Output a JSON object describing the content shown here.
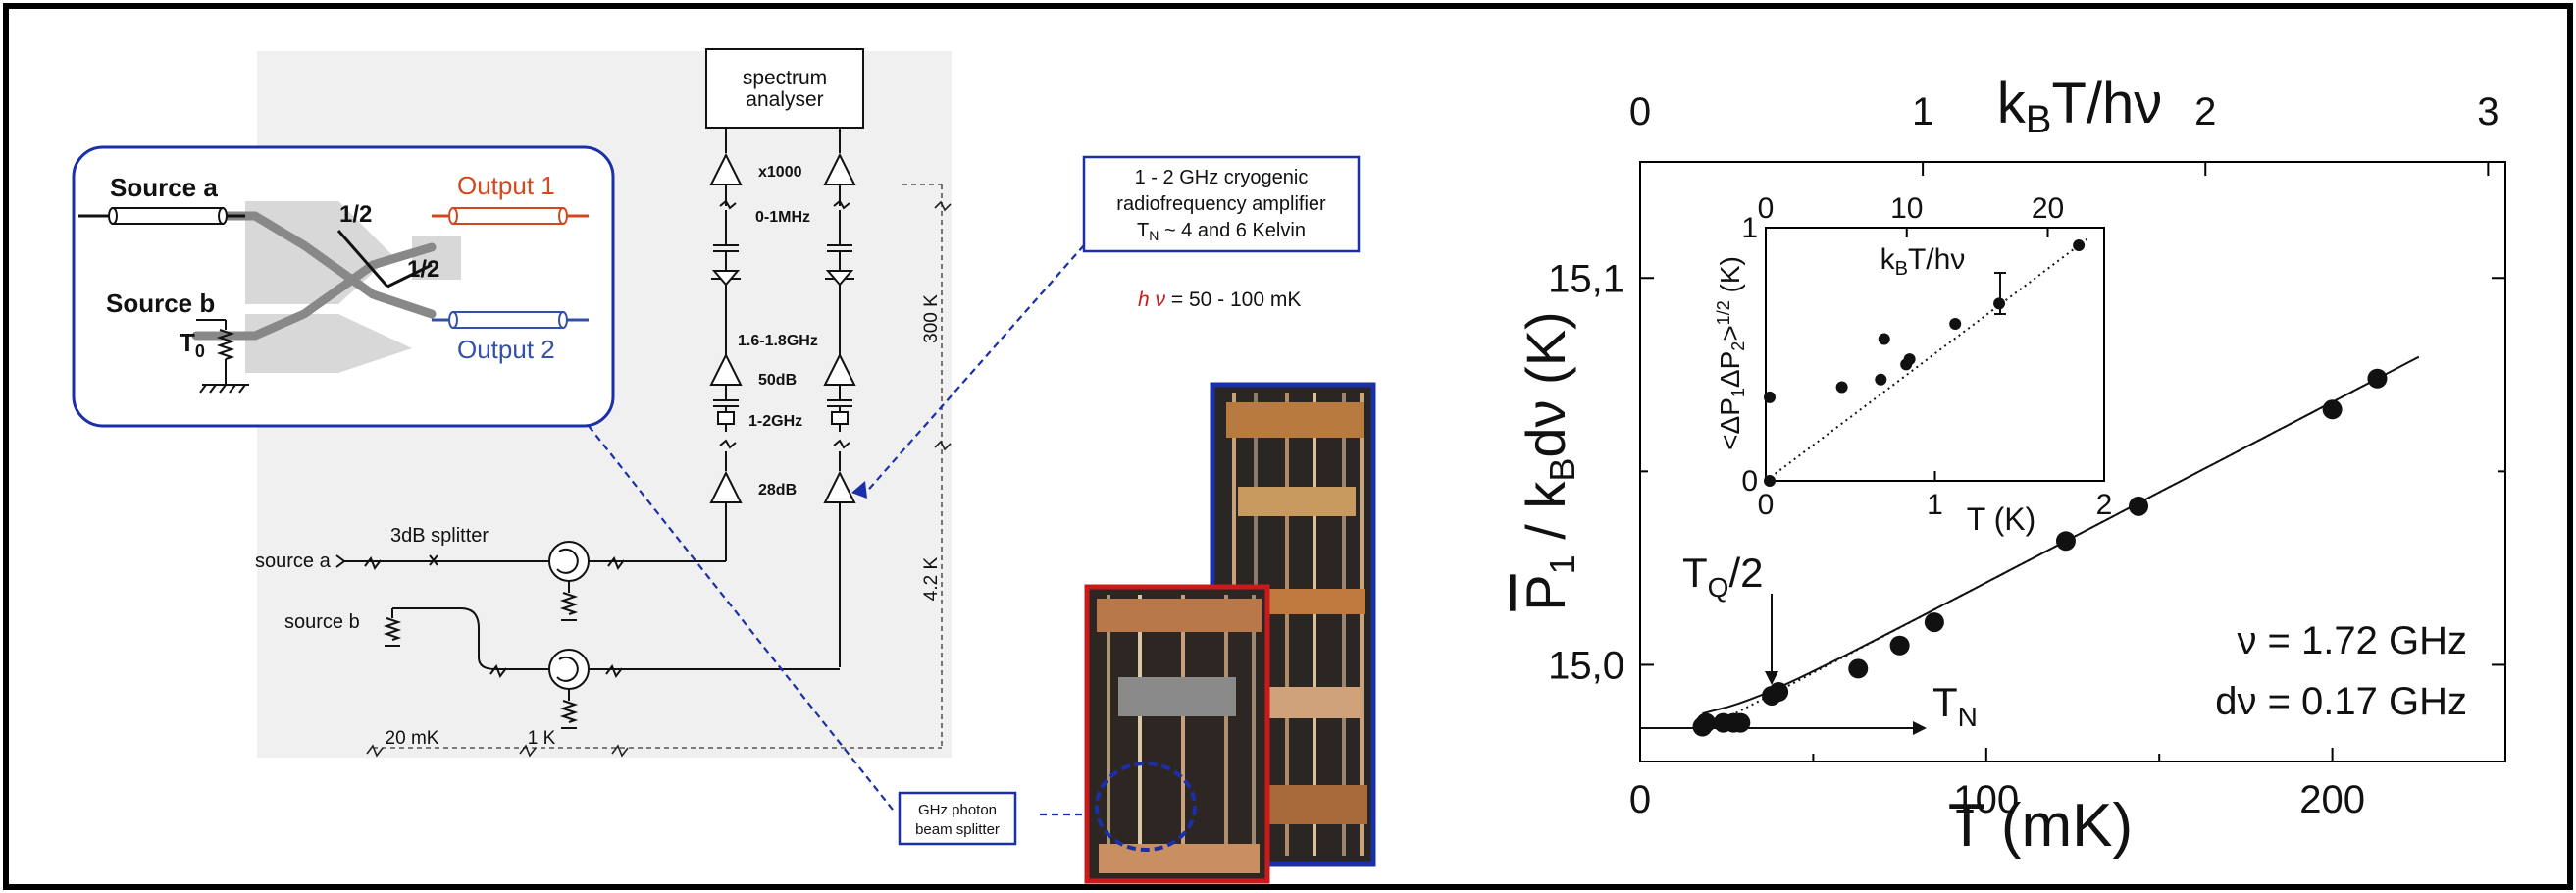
{
  "schematic": {
    "spectrum_analyser_l1": "spectrum",
    "spectrum_analyser_l2": "analyser",
    "gain_x1000": "x1000",
    "band_0_1mhz": "0-1MHz",
    "band_1_6_1_8ghz": "1.6-1.8GHz",
    "gain_50db": "50dB",
    "band_1_2ghz": "1-2GHz",
    "gain_28db": "28dB",
    "temp_300k": "300 K",
    "temp_4_2k": "4.2 K",
    "temp_20mk": "20 mK",
    "temp_1k": "1 K",
    "splitter_label": "3dB splitter",
    "source_a": "source a",
    "source_b": "source b"
  },
  "inset_box": {
    "source_a": "Source a",
    "source_b": "Source b",
    "t0_main": "T",
    "t0_sub": "0",
    "half_1": "1/2",
    "half_2": "1/2",
    "output_1": "Output 1",
    "output_2": "Output 2"
  },
  "callout": {
    "line1": "1 - 2 GHz cryogenic",
    "line2": "radiofrequency amplifier",
    "line3_main": "T",
    "line3_sub": "N",
    "line3_rest": " ~ 4 and 6 Kelvin",
    "hnu_symbol": "h ν",
    "hnu_rest": " = 50 - 100 mK",
    "beam_splitter_l1": "GHz photon",
    "beam_splitter_l2": "beam splitter"
  },
  "colors": {
    "dark_blue": "#1a2fa8",
    "red": "#cc1a1a",
    "output1": "#d2481f",
    "output2": "#3350a8"
  },
  "chart_data": [
    {
      "type": "scatter",
      "xlabel": "T (mK)",
      "ylabel": "P̄₁ / k_B dν (K)",
      "top_axis_label": "k_B T/hν",
      "xlim": [
        0,
        250
      ],
      "ylim": [
        14.975,
        15.13
      ],
      "x_ticks": [
        "0",
        "100",
        "200"
      ],
      "top_ticks": [
        "0",
        "1",
        "2",
        "3"
      ],
      "y_ticks": [
        "15,0",
        "15,1"
      ],
      "annotations": {
        "nu": "ν = 1.72 GHz",
        "dnu": "dν = 0.17 GHz",
        "tq_main": "T",
        "tq_sub": "Q",
        "tq_rest": "/2",
        "tn_main": "T",
        "tn_sub": "N"
      },
      "x": [
        18,
        19,
        24,
        27,
        29,
        38,
        40,
        63,
        75,
        85,
        123,
        144,
        200,
        213
      ],
      "y": [
        14.984,
        14.985,
        14.985,
        14.985,
        14.985,
        14.992,
        14.993,
        14.999,
        15.005,
        15.011,
        15.032,
        15.041,
        15.066,
        15.074
      ]
    },
    {
      "type": "scatter",
      "xlabel": "T (K)",
      "ylabel": "<ΔP₁ΔP₂>^(1/2) (K)",
      "top_axis_label": "k_B T/hν",
      "xlim": [
        0,
        2
      ],
      "ylim": [
        0,
        1
      ],
      "x_ticks": [
        "0",
        "1",
        "2"
      ],
      "top_ticks": [
        "0",
        "10",
        "20"
      ],
      "y_ticks": [
        "0",
        "1"
      ],
      "x": [
        0.0,
        0.0,
        0.45,
        0.68,
        0.7,
        0.83,
        0.85,
        1.12,
        1.38,
        1.85
      ],
      "y": [
        0.0,
        0.33,
        0.37,
        0.4,
        0.56,
        0.46,
        0.48,
        0.62,
        0.7,
        0.93
      ]
    }
  ]
}
